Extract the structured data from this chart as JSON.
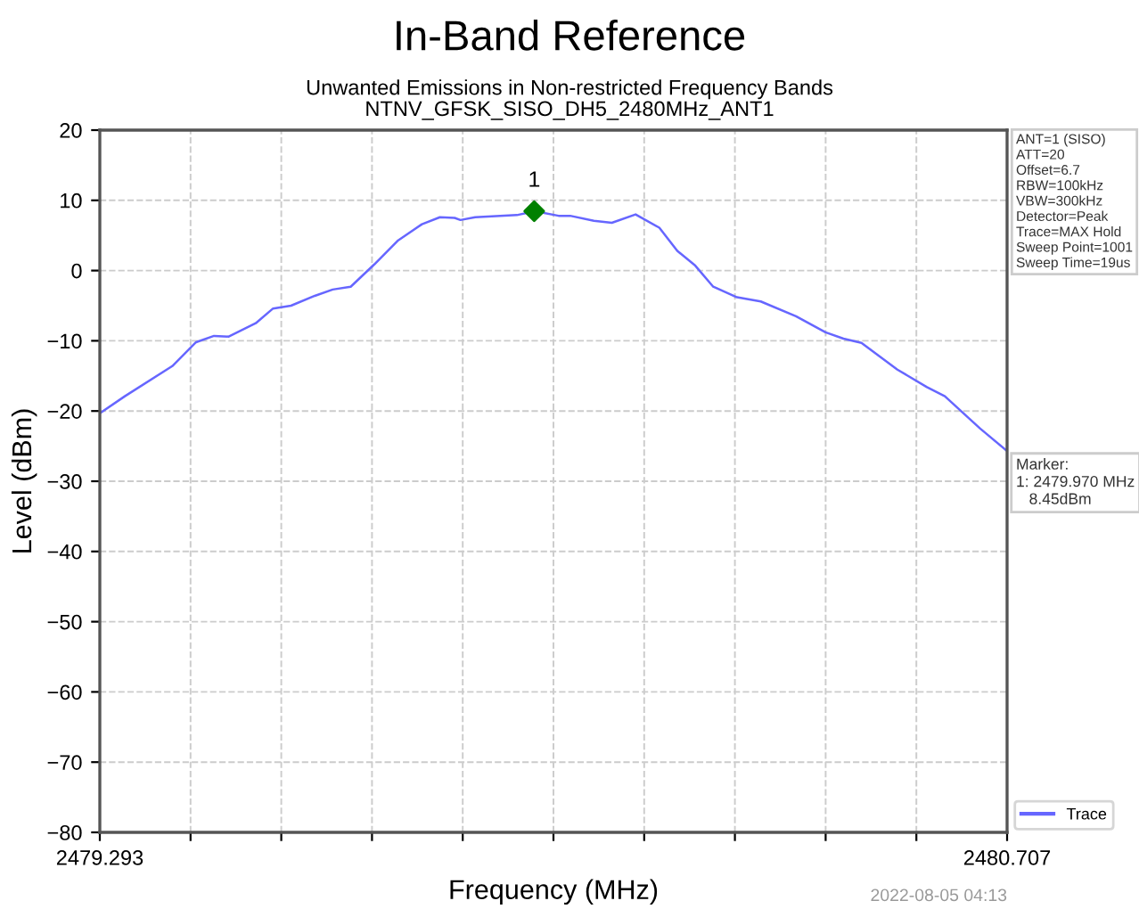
{
  "chart_data": {
    "type": "line",
    "title": "In-Band Reference",
    "subtitle": "Unwanted Emissions in Non-restricted Frequency Bands\nNTNV_GFSK_SISO_DH5_2480MHz_ANT1",
    "xlabel": "Frequency (MHz)",
    "ylabel": "Level (dBm)",
    "xlim": [
      2479.293,
      2480.707
    ],
    "ylim": [
      -80,
      20
    ],
    "xticks": [
      {
        "value": 2479.293,
        "label": "2479.293"
      },
      {
        "value": 2479.4344,
        "label": null
      },
      {
        "value": 2479.5758,
        "label": null
      },
      {
        "value": 2479.7172,
        "label": null
      },
      {
        "value": 2479.8586,
        "label": null
      },
      {
        "value": 2480.0,
        "label": null
      },
      {
        "value": 2480.1414,
        "label": null
      },
      {
        "value": 2480.2828,
        "label": null
      },
      {
        "value": 2480.4242,
        "label": null
      },
      {
        "value": 2480.5656,
        "label": null
      },
      {
        "value": 2480.707,
        "label": "2480.707"
      }
    ],
    "yticks": [
      -80,
      -70,
      -60,
      -50,
      -40,
      -30,
      -20,
      -10,
      0,
      10,
      20
    ],
    "grid": true,
    "legend": "bottom right",
    "series": [
      {
        "name": "Trace",
        "color": "#6666ff",
        "marker": "none",
        "x": [
          2479.295,
          2479.332,
          2479.406,
          2479.443,
          2479.471,
          2479.494,
          2479.536,
          2479.563,
          2479.591,
          2479.628,
          2479.656,
          2479.684,
          2479.721,
          2479.758,
          2479.795,
          2479.823,
          2479.846,
          2479.855,
          2479.878,
          2479.943,
          2479.971,
          2480.008,
          2480.026,
          2480.063,
          2480.091,
          2480.128,
          2480.165,
          2480.193,
          2480.221,
          2480.249,
          2480.286,
          2480.323,
          2480.378,
          2480.424,
          2480.452,
          2480.48,
          2480.536,
          2480.582,
          2480.61,
          2480.665,
          2480.707
        ],
        "values": [
          -20.2,
          -17.9,
          -13.6,
          -10.2,
          -9.3,
          -9.4,
          -7.5,
          -5.4,
          -5.0,
          -3.6,
          -2.7,
          -2.3,
          0.9,
          4.3,
          6.6,
          7.6,
          7.5,
          7.2,
          7.6,
          7.9,
          8.45,
          7.8,
          7.8,
          7.1,
          6.8,
          8.0,
          6.1,
          2.8,
          0.7,
          -2.3,
          -3.8,
          -4.4,
          -6.5,
          -8.8,
          -9.7,
          -10.3,
          -14.1,
          -16.6,
          -17.9,
          -22.5,
          -25.7
        ]
      },
      {
        "color": "#008000",
        "type": "scatter",
        "marker": "diamond",
        "x": [
          2479.97
        ],
        "values": [
          8.45
        ]
      }
    ],
    "annotations": [
      {
        "text": "1",
        "x": 2479.97,
        "y": 8.45
      },
      "ANT=1 (SISO)\nATT=20\nOffset=6.7\nRBW=100kHz\nVBW=300kHz\nDetector=Peak\nTrace=MAX Hold\nSweep Point=1001\nSweep Time=19us",
      "Marker:\n1: 2479.970 MHz\n   8.45dBm",
      "2022-08-05 04:13"
    ]
  }
}
